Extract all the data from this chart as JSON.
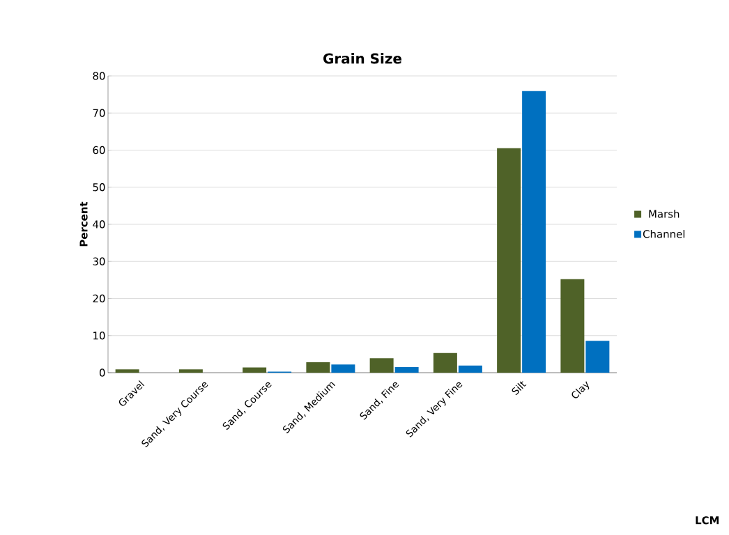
{
  "chart_data": {
    "type": "bar",
    "title": "Grain Size",
    "ylabel": "Percent",
    "categories": [
      "Gravel",
      "Sand, Very Course",
      "Sand, Course",
      "Sand, Medium",
      "Sand, Fine",
      "Sand, Very Fine",
      "Silt",
      "Clay"
    ],
    "series": [
      {
        "name": "Marsh",
        "color": "#4f6228",
        "values": [
          0.9,
          0.9,
          1.4,
          2.8,
          3.9,
          5.3,
          60.5,
          25.2
        ]
      },
      {
        "name": "Channel",
        "color": "#0070c0",
        "values": [
          0,
          0,
          0.3,
          2.2,
          1.5,
          1.9,
          75.9,
          8.6
        ]
      }
    ],
    "ylim": [
      0,
      80
    ],
    "yticks": [
      0,
      10,
      20,
      30,
      40,
      50,
      60,
      70,
      80
    ],
    "grid": "y",
    "legend": "right",
    "annotations": [
      "LCM"
    ]
  }
}
